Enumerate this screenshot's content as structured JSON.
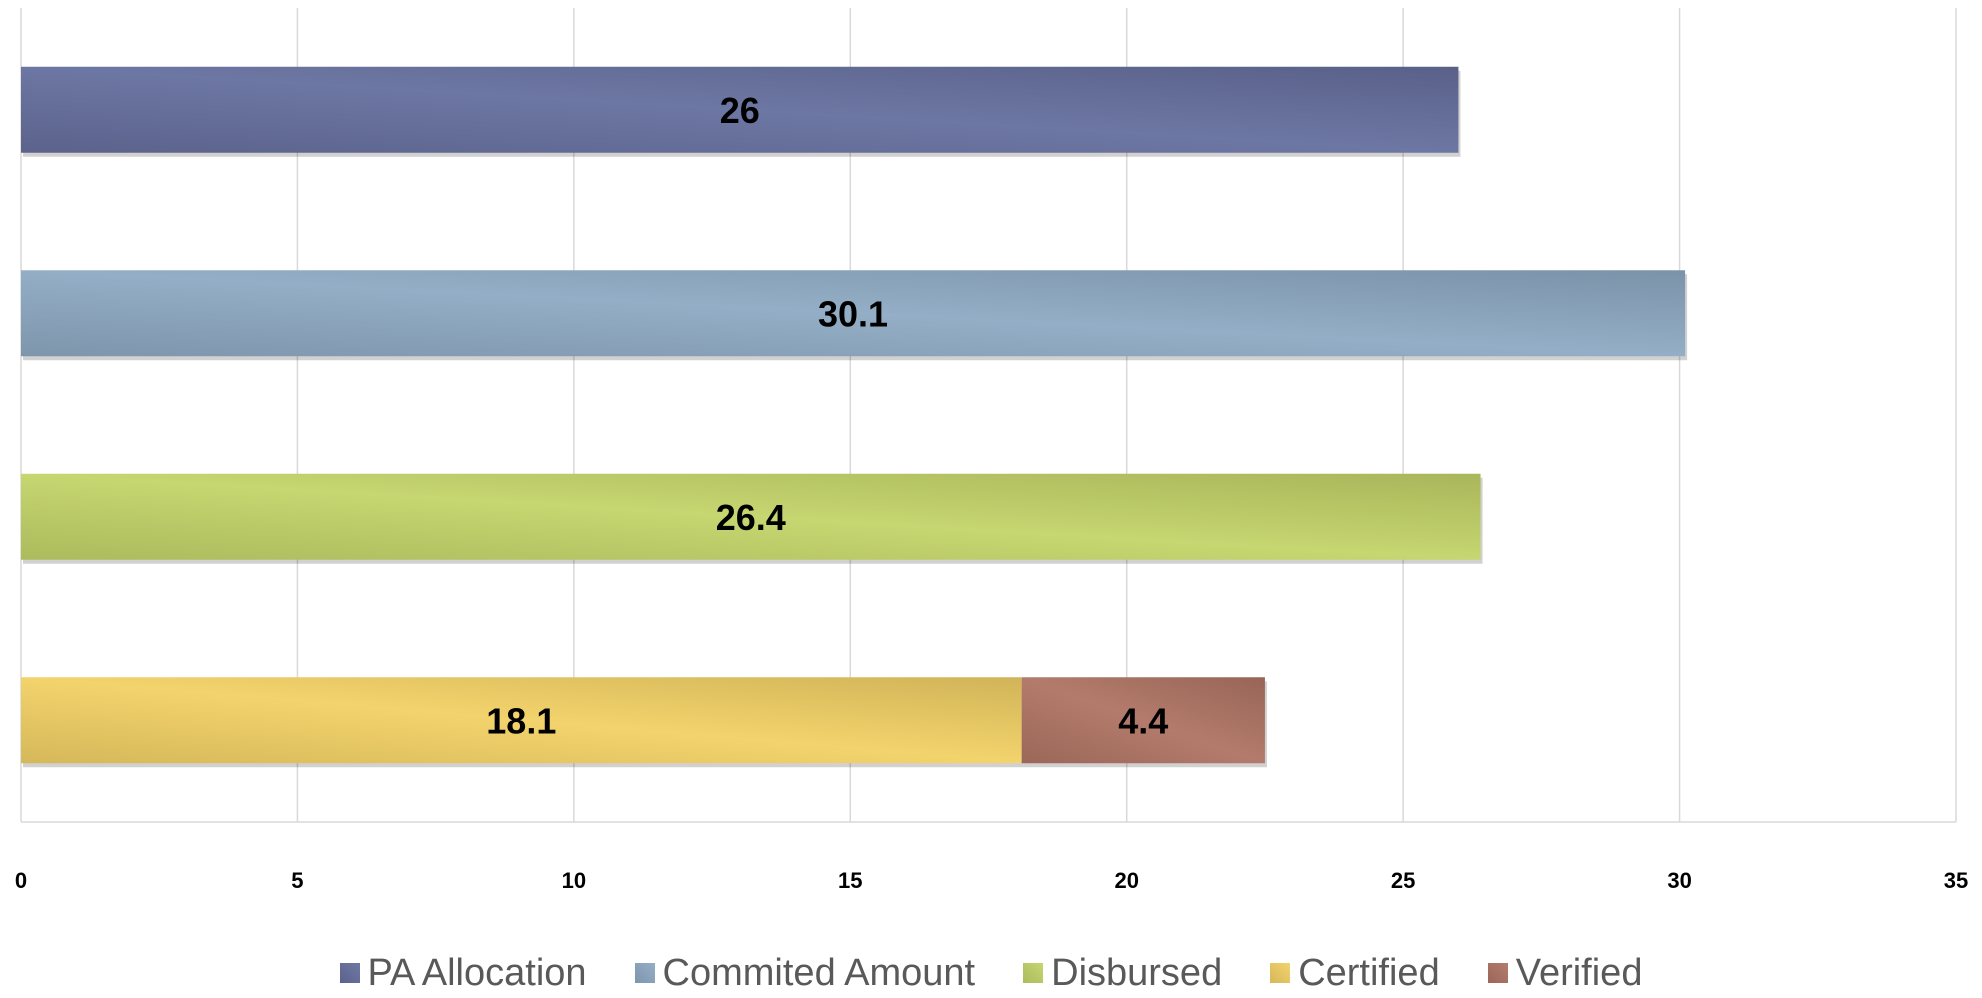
{
  "chart_data": {
    "type": "bar",
    "orientation": "horizontal",
    "stacked": true,
    "xlim": [
      0,
      35
    ],
    "x_ticks": [
      "0",
      "5",
      "10",
      "15",
      "20",
      "25",
      "30",
      "35"
    ],
    "grid": true,
    "legend_position": "bottom",
    "bars": [
      {
        "segments": [
          {
            "series": "PA Allocation",
            "value": 26,
            "label": "26"
          }
        ]
      },
      {
        "segments": [
          {
            "series": "Commited Amount",
            "value": 30.1,
            "label": "30.1"
          }
        ]
      },
      {
        "segments": [
          {
            "series": "Disbursed",
            "value": 26.4,
            "label": "26.4"
          }
        ]
      },
      {
        "segments": [
          {
            "series": "Certified",
            "value": 18.1,
            "label": "18.1"
          },
          {
            "series": "Verified",
            "value": 4.4,
            "label": "4.4"
          }
        ]
      }
    ],
    "series": [
      {
        "name": "PA Allocation",
        "color": "#67719f"
      },
      {
        "name": "Commited Amount",
        "color": "#8fabc4"
      },
      {
        "name": "Disbursed",
        "color": "#c4d46a"
      },
      {
        "name": "Certified",
        "color": "#f2d166"
      },
      {
        "name": "Verified",
        "color": "#b07565"
      }
    ]
  }
}
